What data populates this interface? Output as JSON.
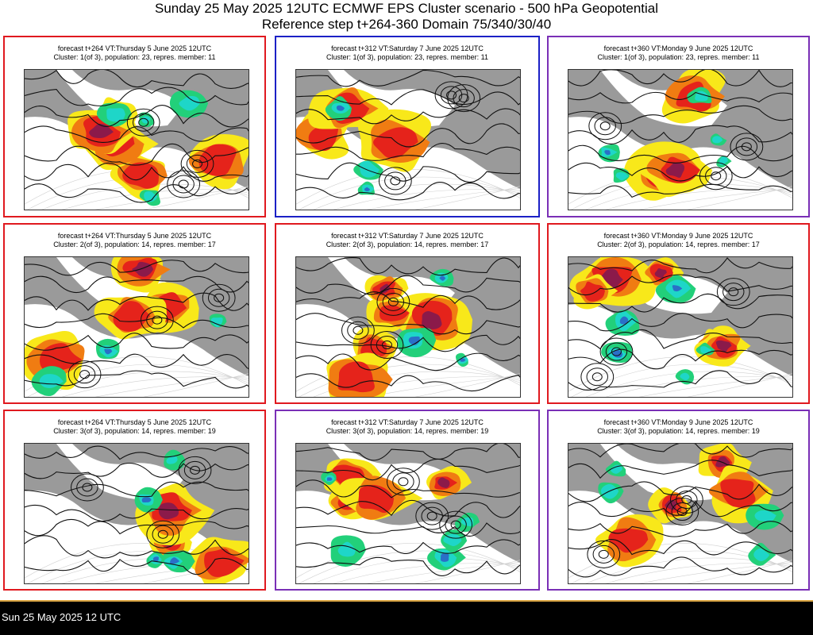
{
  "header": {
    "title_line1": "Sunday 25 May 2025 12UTC ECMWF EPS Cluster scenario - 500 hPa Geopotential",
    "title_line2": "Reference step t+264-360 Domain 75/340/30/40"
  },
  "panels": [
    {
      "row": 1,
      "col": 1,
      "border_color": "#e0191f",
      "forecast_line": "forecast t+264 VT:Thursday 5 June 2025 12UTC",
      "cluster_line": "Cluster: 1(of 3), population: 23, repres. member: 11"
    },
    {
      "row": 1,
      "col": 2,
      "border_color": "#1b20c6",
      "forecast_line": "forecast t+312 VT:Saturday 7 June 2025 12UTC",
      "cluster_line": "Cluster: 1(of 3), population: 23, repres. member: 11"
    },
    {
      "row": 1,
      "col": 3,
      "border_color": "#7a2fb6",
      "forecast_line": "forecast t+360 VT:Monday 9 June 2025 12UTC",
      "cluster_line": "Cluster: 1(of 3), population: 23, repres. member: 11"
    },
    {
      "row": 2,
      "col": 1,
      "border_color": "#e0191f",
      "forecast_line": "forecast t+264 VT:Thursday 5 June 2025 12UTC",
      "cluster_line": "Cluster: 2(of 3), population: 14, repres. member: 17"
    },
    {
      "row": 2,
      "col": 2,
      "border_color": "#e0191f",
      "forecast_line": "forecast t+312 VT:Saturday 7 June 2025 12UTC",
      "cluster_line": "Cluster: 2(of 3), population: 14, repres. member: 17"
    },
    {
      "row": 2,
      "col": 3,
      "border_color": "#e0191f",
      "forecast_line": "forecast t+360 VT:Monday 9 June 2025 12UTC",
      "cluster_line": "Cluster: 2(of 3), population: 14, repres. member: 17"
    },
    {
      "row": 3,
      "col": 1,
      "border_color": "#e0191f",
      "forecast_line": "forecast t+264 VT:Thursday 5 June 2025 12UTC",
      "cluster_line": "Cluster: 3(of 3), population: 14, repres. member: 19"
    },
    {
      "row": 3,
      "col": 2,
      "border_color": "#7a2fb6",
      "forecast_line": "forecast t+312 VT:Saturday 7 June 2025 12UTC",
      "cluster_line": "Cluster: 3(of 3), population: 14, repres. member: 19"
    },
    {
      "row": 3,
      "col": 3,
      "border_color": "#7a2fb6",
      "forecast_line": "forecast t+360 VT:Monday 9 June 2025 12UTC",
      "cluster_line": "Cluster: 3(of 3), population: 14, repres. member: 19"
    }
  ],
  "anomaly_colors": {
    "strong_positive": "#8b1a4a",
    "positive_high": "#e5231b",
    "positive_mid": "#f07c12",
    "positive_low": "#f8e81a",
    "negative_low": "#22d07a",
    "negative_mid": "#1ed6c8",
    "negative_high": "#2a6fc8",
    "land": "#9a9a9a",
    "sea": "#ffffff"
  },
  "footer": {
    "text": "Sun 25 May 2025 12 UTC"
  }
}
